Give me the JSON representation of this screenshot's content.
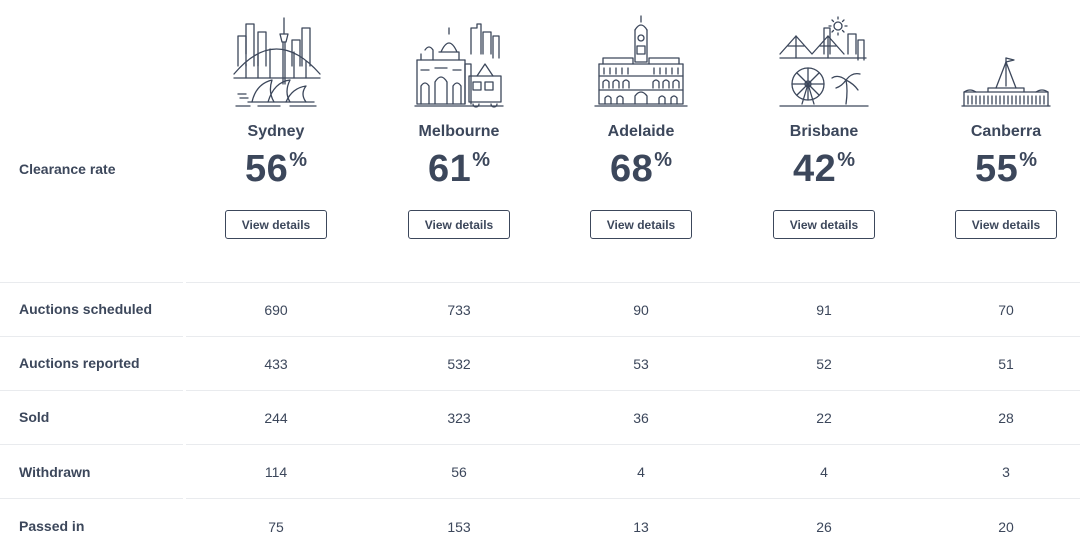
{
  "header": {
    "clearance_label": "Clearance rate",
    "view_details_label": "View details"
  },
  "cities": [
    {
      "name": "Sydney",
      "clearance_rate": "56",
      "unit": "%",
      "icon": "sydney-skyline-icon"
    },
    {
      "name": "Melbourne",
      "clearance_rate": "61",
      "unit": "%",
      "icon": "melbourne-skyline-icon"
    },
    {
      "name": "Adelaide",
      "clearance_rate": "68",
      "unit": "%",
      "icon": "adelaide-skyline-icon"
    },
    {
      "name": "Brisbane",
      "clearance_rate": "42",
      "unit": "%",
      "icon": "brisbane-skyline-icon"
    },
    {
      "name": "Canberra",
      "clearance_rate": "55",
      "unit": "%",
      "icon": "canberra-skyline-icon"
    }
  ],
  "table": {
    "rows": [
      {
        "label": "Auctions scheduled",
        "values": [
          "690",
          "733",
          "90",
          "91",
          "70"
        ]
      },
      {
        "label": "Auctions reported",
        "values": [
          "433",
          "532",
          "53",
          "52",
          "51"
        ]
      },
      {
        "label": "Sold",
        "values": [
          "244",
          "323",
          "36",
          "22",
          "28"
        ]
      },
      {
        "label": "Withdrawn",
        "values": [
          "114",
          "56",
          "4",
          "4",
          "3"
        ]
      },
      {
        "label": "Passed in",
        "values": [
          "75",
          "153",
          "13",
          "26",
          "20"
        ]
      }
    ]
  },
  "colors": {
    "text": "#3c475b",
    "divider": "#e9ebee",
    "background": "#ffffff"
  }
}
